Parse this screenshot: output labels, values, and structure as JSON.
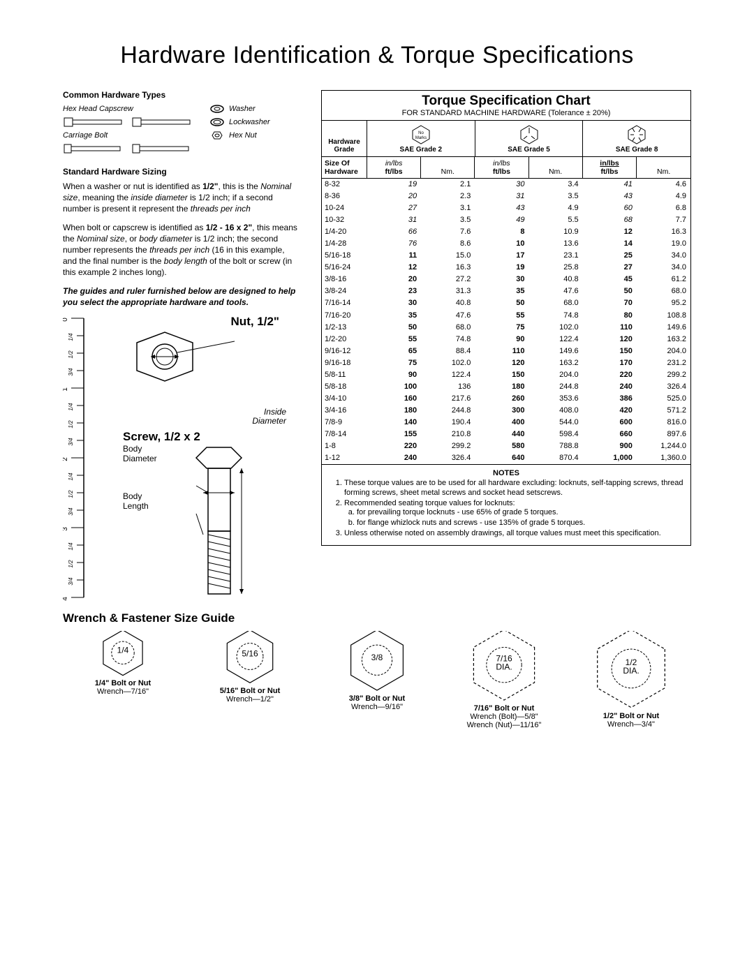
{
  "title": "Hardware Identification  &  Torque Specifications",
  "hardwareTypes": {
    "heading": "Common Hardware Types",
    "items": {
      "hexCap": "Hex Head Capscrew",
      "carriage": "Carriage Bolt",
      "washer": "Washer",
      "lockwasher": "Lockwasher",
      "hexNut": "Hex Nut"
    }
  },
  "sizing": {
    "heading": "Standard Hardware Sizing",
    "p1a": "When a washer or nut is identified as ",
    "p1b": "1/2\"",
    "p1c": ", this is the ",
    "p1d": "Nominal size",
    "p1e": ", meaning the ",
    "p1f": "inside diameter",
    "p1g": " is 1/2 inch; if a second number is present it represent the ",
    "p1h": "threads per inch",
    "p2a": "When bolt or capscrew is identified as ",
    "p2b": "1/2 - 16 x 2\"",
    "p2c": ", this means the ",
    "p2d": "Nominal size",
    "p2e": ", or ",
    "p2f": "body diameter",
    "p2g": " is 1/2 inch; the second number represents the ",
    "p2h": "threads per inch",
    "p2i": " (16 in this example, and the final number is the ",
    "p2j": "body length",
    "p2k": " of the bolt or screw (in this example 2 inches long).",
    "guideNote": "The guides and ruler furnished below are designed to help you select the appropriate hardware and tools."
  },
  "diagram": {
    "nutTitle": "Nut, 1/2\"",
    "insideDia1": "Inside",
    "insideDia2": "Diameter",
    "screwTitle": "Screw, 1/2 x 2",
    "bodyDia1": "Body",
    "bodyDia2": "Diameter",
    "bodyLen1": "Body",
    "bodyLen2": "Length",
    "rulerTicks": [
      "0",
      "1/4",
      "1/2",
      "3/4",
      "1",
      "1/4",
      "1/2",
      "3/4",
      "2",
      "1/4",
      "1/2",
      "3/4",
      "3",
      "1/4",
      "1/2",
      "3/4",
      "4"
    ]
  },
  "chart": {
    "title": "Torque Specification Chart",
    "subtitle": "FOR STANDARD MACHINE HARDWARE (Tolerance ± 20%)",
    "gradeLabel1": "Hardware",
    "gradeLabel2": "Grade",
    "noMarks": "No\nMarks",
    "grades": [
      "SAE Grade 2",
      "SAE Grade 5",
      "SAE Grade 8"
    ],
    "sizeHdr1": "Size Of",
    "sizeHdr2": "Hardware",
    "unit1": "in/lbs",
    "unit2": "ft/lbs",
    "unitNm": "Nm.",
    "rows": [
      {
        "s": "8-32",
        "g2": [
          "19",
          "2.1"
        ],
        "g5": [
          "30",
          "3.4"
        ],
        "g8": [
          "41",
          "4.6"
        ],
        "it2": true,
        "it5": true,
        "it8": true
      },
      {
        "s": "8-36",
        "g2": [
          "20",
          "2.3"
        ],
        "g5": [
          "31",
          "3.5"
        ],
        "g8": [
          "43",
          "4.9"
        ],
        "it2": true,
        "it5": true,
        "it8": true
      },
      {
        "s": "10-24",
        "g2": [
          "27",
          "3.1"
        ],
        "g5": [
          "43",
          "4.9"
        ],
        "g8": [
          "60",
          "6.8"
        ],
        "it2": true,
        "it5": true,
        "it8": true
      },
      {
        "s": "10-32",
        "g2": [
          "31",
          "3.5"
        ],
        "g5": [
          "49",
          "5.5"
        ],
        "g8": [
          "68",
          "7.7"
        ],
        "it2": true,
        "it5": true,
        "it8": true
      },
      {
        "s": "1/4-20",
        "g2": [
          "66",
          "7.6"
        ],
        "g5": [
          "8",
          "10.9"
        ],
        "g8": [
          "12",
          "16.3"
        ],
        "it2": true,
        "bd5": true,
        "bd8": true
      },
      {
        "s": "1/4-28",
        "g2": [
          "76",
          "8.6"
        ],
        "g5": [
          "10",
          "13.6"
        ],
        "g8": [
          "14",
          "19.0"
        ],
        "it2": true,
        "bd5": true,
        "bd8": true
      },
      {
        "s": "5/16-18",
        "g2": [
          "11",
          "15.0"
        ],
        "g5": [
          "17",
          "23.1"
        ],
        "g8": [
          "25",
          "34.0"
        ],
        "bd2": true,
        "bd5": true,
        "bd8": true
      },
      {
        "s": "5/16-24",
        "g2": [
          "12",
          "16.3"
        ],
        "g5": [
          "19",
          "25.8"
        ],
        "g8": [
          "27",
          "34.0"
        ],
        "bd2": true,
        "bd5": true,
        "bd8": true
      },
      {
        "s": "3/8-16",
        "g2": [
          "20",
          "27.2"
        ],
        "g5": [
          "30",
          "40.8"
        ],
        "g8": [
          "45",
          "61.2"
        ],
        "bd2": true,
        "bd5": true,
        "bd8": true
      },
      {
        "s": "3/8-24",
        "g2": [
          "23",
          "31.3"
        ],
        "g5": [
          "35",
          "47.6"
        ],
        "g8": [
          "50",
          "68.0"
        ],
        "bd2": true,
        "bd5": true,
        "bd8": true
      },
      {
        "s": "7/16-14",
        "g2": [
          "30",
          "40.8"
        ],
        "g5": [
          "50",
          "68.0"
        ],
        "g8": [
          "70",
          "95.2"
        ],
        "bd2": true,
        "bd5": true,
        "bd8": true
      },
      {
        "s": "7/16-20",
        "g2": [
          "35",
          "47.6"
        ],
        "g5": [
          "55",
          "74.8"
        ],
        "g8": [
          "80",
          "108.8"
        ],
        "bd2": true,
        "bd5": true,
        "bd8": true
      },
      {
        "s": "1/2-13",
        "g2": [
          "50",
          "68.0"
        ],
        "g5": [
          "75",
          "102.0"
        ],
        "g8": [
          "110",
          "149.6"
        ],
        "bd2": true,
        "bd5": true,
        "bd8": true
      },
      {
        "s": "1/2-20",
        "g2": [
          "55",
          "74.8"
        ],
        "g5": [
          "90",
          "122.4"
        ],
        "g8": [
          "120",
          "163.2"
        ],
        "bd2": true,
        "bd5": true,
        "bd8": true
      },
      {
        "s": "9/16-12",
        "g2": [
          "65",
          "88.4"
        ],
        "g5": [
          "110",
          "149.6"
        ],
        "g8": [
          "150",
          "204.0"
        ],
        "bd2": true,
        "bd5": true,
        "bd8": true
      },
      {
        "s": "9/16-18",
        "g2": [
          "75",
          "102.0"
        ],
        "g5": [
          "120",
          "163.2"
        ],
        "g8": [
          "170",
          "231.2"
        ],
        "bd2": true,
        "bd5": true,
        "bd8": true
      },
      {
        "s": "5/8-11",
        "g2": [
          "90",
          "122.4"
        ],
        "g5": [
          "150",
          "204.0"
        ],
        "g8": [
          "220",
          "299.2"
        ],
        "bd2": true,
        "bd5": true,
        "bd8": true
      },
      {
        "s": "5/8-18",
        "g2": [
          "100",
          "136"
        ],
        "g5": [
          "180",
          "244.8"
        ],
        "g8": [
          "240",
          "326.4"
        ],
        "bd2": true,
        "bd5": true,
        "bd8": true
      },
      {
        "s": "3/4-10",
        "g2": [
          "160",
          "217.6"
        ],
        "g5": [
          "260",
          "353.6"
        ],
        "g8": [
          "386",
          "525.0"
        ],
        "bd2": true,
        "bd5": true,
        "bd8": true
      },
      {
        "s": "3/4-16",
        "g2": [
          "180",
          "244.8"
        ],
        "g5": [
          "300",
          "408.0"
        ],
        "g8": [
          "420",
          "571.2"
        ],
        "bd2": true,
        "bd5": true,
        "bd8": true
      },
      {
        "s": "7/8-9",
        "g2": [
          "140",
          "190.4"
        ],
        "g5": [
          "400",
          "544.0"
        ],
        "g8": [
          "600",
          "816.0"
        ],
        "bd2": true,
        "bd5": true,
        "bd8": true
      },
      {
        "s": "7/8-14",
        "g2": [
          "155",
          "210.8"
        ],
        "g5": [
          "440",
          "598.4"
        ],
        "g8": [
          "660",
          "897.6"
        ],
        "bd2": true,
        "bd5": true,
        "bd8": true
      },
      {
        "s": "1-8",
        "g2": [
          "220",
          "299.2"
        ],
        "g5": [
          "580",
          "788.8"
        ],
        "g8": [
          "900",
          "1,244.0"
        ],
        "bd2": true,
        "bd5": true,
        "bd8": true
      },
      {
        "s": "1-12",
        "g2": [
          "240",
          "326.4"
        ],
        "g5": [
          "640",
          "870.4"
        ],
        "g8": [
          "1,000",
          "1,360.0"
        ],
        "bd2": true,
        "bd5": true,
        "bd8": true
      }
    ],
    "notesTitle": "NOTES",
    "notes": {
      "n1": "These torque values are to be used for all hardware excluding: locknuts, self-tapping screws, thread forming screws, sheet metal screws and socket head setscrews.",
      "n2": "Recommended seating torque values for locknuts:",
      "n2a": "for prevailing torque locknuts - use 65% of grade 5 torques.",
      "n2b": "for flange whizlock nuts and screws - use 135% of grade 5 torques.",
      "n3": "Unless otherwise noted on assembly drawings, all torque values must meet this specification."
    }
  },
  "wrench": {
    "title": "Wrench & Fastener Size Guide",
    "items": [
      {
        "size": "1/4",
        "label": "1/4\" Bolt or Nut",
        "wrench": "Wrench—7/16\"",
        "dashed": false,
        "scale": 36
      },
      {
        "size": "5/16",
        "label": "5/16\" Bolt or Nut",
        "wrench": "Wrench—1/2\"",
        "dashed": false,
        "scale": 42
      },
      {
        "size": "3/8",
        "label": "3/8\" Bolt or Nut",
        "wrench": "Wrench—9/16\"",
        "dashed": false,
        "scale": 48
      },
      {
        "size": "7/16\nDIA.",
        "label": "7/16\" Bolt or Nut",
        "wrench": "Wrench (Bolt)—5/8\"",
        "wrench2": "Wrench (Nut)—11/16\"",
        "dashed": true,
        "scale": 56
      },
      {
        "size": "1/2\nDIA.",
        "label": "1/2\" Bolt or Nut",
        "wrench": "Wrench—3/4\"",
        "dashed": true,
        "scale": 62
      }
    ]
  },
  "colors": {
    "line": "#000000",
    "bg": "#ffffff"
  }
}
